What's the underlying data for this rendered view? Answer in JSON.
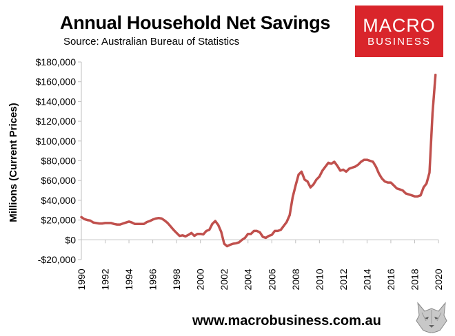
{
  "header": {
    "title": "Annual Household Net Savings",
    "source": "Source: Australian Bureau of Statistics"
  },
  "logo": {
    "line1": "MACRO",
    "line2": "BUSINESS",
    "color": "#d9252b"
  },
  "footer": {
    "url": "www.macrobusiness.com.au"
  },
  "mascot": {
    "icon": "wolf-mascot-icon"
  },
  "colors": {
    "line": "#c0504d",
    "axis": "#bfbfbf"
  },
  "chart_data": {
    "type": "line",
    "title": "Annual Household Net Savings",
    "xlabel": "",
    "ylabel": "Millions (Current Prices)",
    "xlim": [
      1990,
      2020
    ],
    "ylim": [
      -20000,
      180000
    ],
    "y_ticks": [
      -20000,
      0,
      20000,
      40000,
      60000,
      80000,
      100000,
      120000,
      140000,
      160000,
      180000
    ],
    "y_tick_labels": [
      "-$20,000",
      "$0",
      "$20,000",
      "$40,000",
      "$60,000",
      "$80,000",
      "$100,000",
      "$120,000",
      "$140,000",
      "$160,000",
      "$180,000"
    ],
    "x_ticks": [
      1990,
      1992,
      1994,
      1996,
      1998,
      2000,
      2002,
      2004,
      2006,
      2008,
      2010,
      2012,
      2014,
      2016,
      2018,
      2020
    ],
    "x_tick_labels": [
      "1990",
      "1992",
      "1994",
      "1996",
      "1998",
      "2000",
      "2002",
      "2004",
      "2006",
      "2008",
      "2010",
      "2012",
      "2014",
      "2016",
      "2018",
      "2020"
    ],
    "grid": false,
    "series": [
      {
        "name": "Household Net Savings",
        "x": [
          1990.0,
          1990.25,
          1990.5,
          1990.75,
          1991.0,
          1991.25,
          1991.5,
          1991.75,
          1992.0,
          1992.25,
          1992.5,
          1992.75,
          1993.0,
          1993.25,
          1993.5,
          1993.75,
          1994.0,
          1994.25,
          1994.5,
          1994.75,
          1995.0,
          1995.25,
          1995.5,
          1995.75,
          1996.0,
          1996.25,
          1996.5,
          1996.75,
          1997.0,
          1997.25,
          1997.5,
          1997.75,
          1998.0,
          1998.25,
          1998.5,
          1998.75,
          1999.0,
          1999.25,
          1999.5,
          1999.75,
          2000.0,
          2000.25,
          2000.5,
          2000.75,
          2001.0,
          2001.25,
          2001.5,
          2001.75,
          2002.0,
          2002.25,
          2002.5,
          2002.75,
          2003.0,
          2003.25,
          2003.5,
          2003.75,
          2004.0,
          2004.25,
          2004.5,
          2004.75,
          2005.0,
          2005.25,
          2005.5,
          2005.75,
          2006.0,
          2006.25,
          2006.5,
          2006.75,
          2007.0,
          2007.25,
          2007.5,
          2007.75,
          2008.0,
          2008.25,
          2008.5,
          2008.75,
          2009.0,
          2009.25,
          2009.5,
          2009.75,
          2010.0,
          2010.25,
          2010.5,
          2010.75,
          2011.0,
          2011.25,
          2011.5,
          2011.75,
          2012.0,
          2012.25,
          2012.5,
          2012.75,
          2013.0,
          2013.25,
          2013.5,
          2013.75,
          2014.0,
          2014.25,
          2014.5,
          2014.75,
          2015.0,
          2015.25,
          2015.5,
          2015.75,
          2016.0,
          2016.25,
          2016.5,
          2016.75,
          2017.0,
          2017.25,
          2017.5,
          2017.75,
          2018.0,
          2018.25,
          2018.5,
          2018.75,
          2019.0,
          2019.25,
          2019.5,
          2019.75
        ],
        "values": [
          23000,
          21000,
          20000,
          19500,
          17500,
          17000,
          16500,
          16500,
          17000,
          17000,
          17000,
          16000,
          15500,
          15500,
          16500,
          17500,
          18500,
          17500,
          16000,
          16000,
          16000,
          16000,
          18000,
          19000,
          20500,
          21500,
          22000,
          21500,
          19500,
          17000,
          13500,
          10000,
          7000,
          4000,
          4500,
          3500,
          5000,
          7000,
          4000,
          6000,
          6000,
          5500,
          9000,
          10000,
          16000,
          19000,
          15000,
          8000,
          -4000,
          -6500,
          -5000,
          -4000,
          -3500,
          -2500,
          0,
          2000,
          6000,
          6000,
          9000,
          9000,
          7500,
          3000,
          2000,
          4000,
          5000,
          9000,
          9000,
          10000,
          14000,
          18000,
          25000,
          43000,
          55000,
          66000,
          69000,
          61000,
          59000,
          53000,
          56000,
          61000,
          64000,
          70000,
          74000,
          78000,
          77000,
          79000,
          75000,
          70000,
          71000,
          69000,
          72000,
          73000,
          74000,
          76000,
          79000,
          81000,
          81000,
          80000,
          79000,
          74000,
          67000,
          62000,
          59000,
          58000,
          58000,
          55000,
          52000,
          51000,
          50000,
          47000,
          46000,
          45000,
          44000,
          44000,
          45000,
          53000,
          57000,
          68000,
          128000,
          167000
        ]
      }
    ]
  }
}
